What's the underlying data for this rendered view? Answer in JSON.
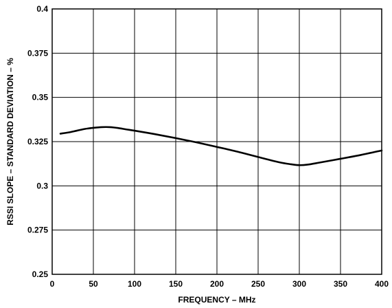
{
  "chart_data": {
    "type": "line",
    "title": "",
    "xlabel": "FREQUENCY – MHz",
    "ylabel": "RSSI SLOPE – STANDARD DEVIATION – %",
    "xlim": [
      0,
      400
    ],
    "ylim": [
      0.25,
      0.4
    ],
    "grid": true,
    "legend": "none",
    "x_ticks": [
      0,
      50,
      100,
      150,
      200,
      250,
      300,
      350,
      400
    ],
    "x_tick_labels": [
      "0",
      "50",
      "100",
      "150",
      "200",
      "250",
      "300",
      "350",
      "400"
    ],
    "y_ticks": [
      0.25,
      0.275,
      0.3,
      0.325,
      0.35,
      0.375,
      0.4
    ],
    "y_tick_labels": [
      "0.25",
      "0.275",
      "0.3",
      "0.325",
      "0.35",
      "0.375",
      "0.4"
    ],
    "series": [
      {
        "color": "#000000",
        "x": [
          10,
          20,
          30,
          40,
          50,
          60,
          70,
          80,
          90,
          100,
          125,
          150,
          175,
          200,
          225,
          250,
          275,
          290,
          300,
          310,
          325,
          350,
          375,
          400
        ],
        "y": [
          0.3295,
          0.3302,
          0.3312,
          0.3322,
          0.3328,
          0.3332,
          0.3332,
          0.3327,
          0.3319,
          0.3312,
          0.3292,
          0.327,
          0.3246,
          0.322,
          0.3193,
          0.3163,
          0.3134,
          0.3122,
          0.3117,
          0.312,
          0.3132,
          0.3153,
          0.3175,
          0.32
        ]
      }
    ]
  }
}
